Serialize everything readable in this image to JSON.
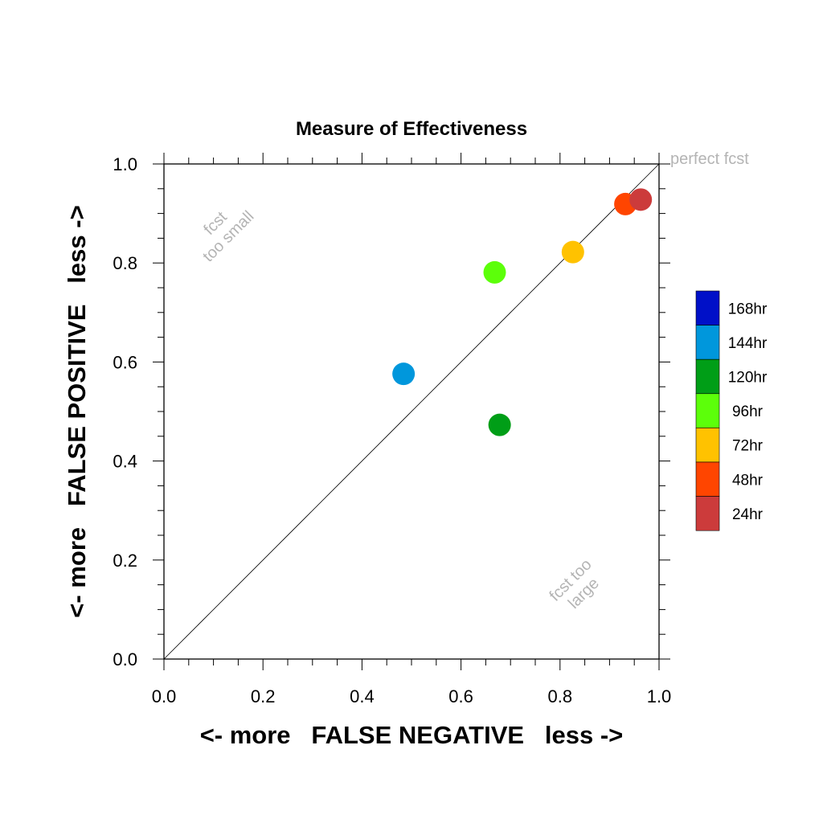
{
  "chart_data": {
    "type": "scatter",
    "title": "Measure of Effectiveness",
    "xlabel": "<- more   FALSE NEGATIVE   less ->",
    "ylabel": "<- more   FALSE POSITIVE   less ->",
    "xlim": [
      0.0,
      1.0
    ],
    "ylim": [
      0.0,
      1.0
    ],
    "x_ticks": [
      "0.0",
      "0.2",
      "0.4",
      "0.6",
      "0.8",
      "1.0"
    ],
    "y_ticks": [
      "0.0",
      "0.2",
      "0.4",
      "0.6",
      "0.8",
      "1.0"
    ],
    "tick_values": [
      0.0,
      0.2,
      0.4,
      0.6,
      0.8,
      1.0
    ],
    "grid": false,
    "reference_line": {
      "from": [
        0.0,
        0.0
      ],
      "to": [
        1.0,
        1.0
      ]
    },
    "annotations": {
      "perfect": "perfect fcst",
      "small_line1": "fcst",
      "small_line2": "too small",
      "large_line1": "fcst too",
      "large_line2": "large"
    },
    "legend_position": "right",
    "series": [
      {
        "name": "24hr",
        "x": 0.963,
        "y": 0.928,
        "color": "#cc3b3b"
      },
      {
        "name": "48hr",
        "x": 0.932,
        "y": 0.919,
        "color": "#ff4500"
      },
      {
        "name": "72hr",
        "x": 0.826,
        "y": 0.822,
        "color": "#ffc200"
      },
      {
        "name": "96hr",
        "x": 0.668,
        "y": 0.781,
        "color": "#5cff0a"
      },
      {
        "name": "120hr",
        "x": 0.678,
        "y": 0.473,
        "color": "#009e17"
      },
      {
        "name": "144hr",
        "x": 0.484,
        "y": 0.576,
        "color": "#0097dc"
      }
    ],
    "legend": [
      {
        "label": "168hr",
        "color": "#0010c8"
      },
      {
        "label": "144hr",
        "color": "#0097dc"
      },
      {
        "label": "120hr",
        "color": "#009e17"
      },
      {
        "label": "96hr",
        "color": "#5cff0a"
      },
      {
        "label": "72hr",
        "color": "#ffc200"
      },
      {
        "label": "48hr",
        "color": "#ff4500"
      },
      {
        "label": "24hr",
        "color": "#cc3b3b"
      }
    ]
  }
}
